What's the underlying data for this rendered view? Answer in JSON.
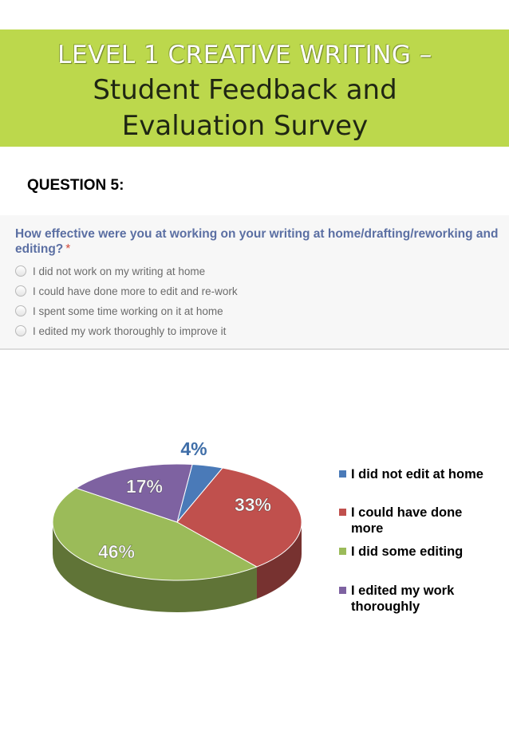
{
  "banner": {
    "line1": "LEVEL 1 CREATIVE WRITING –",
    "line2": "Student Feedback and",
    "line3": "Evaluation Survey",
    "color": "#bcd84c"
  },
  "question_label": "QUESTION 5:",
  "form": {
    "question": "How effective were you at working on your writing at home/drafting/reworking and editing?",
    "required_mark": "*",
    "options": [
      "I did not work on my writing at home",
      "I could have done more to edit and re-work",
      "I spent some time working on it at home",
      "I edited my work thoroughly to improve it"
    ]
  },
  "chart_data": {
    "type": "pie",
    "style": "3d",
    "legend_position": "right",
    "categories": [
      "I did not edit at home",
      "I could have done more",
      "I did some editing",
      "I edited my work thoroughly"
    ],
    "values": [
      4,
      33,
      46,
      17
    ],
    "labels": [
      "4%",
      "33%",
      "46%",
      "17%"
    ],
    "colors": [
      "#4a7ab8",
      "#c0504d",
      "#9bbb59",
      "#7e62a1"
    ]
  }
}
